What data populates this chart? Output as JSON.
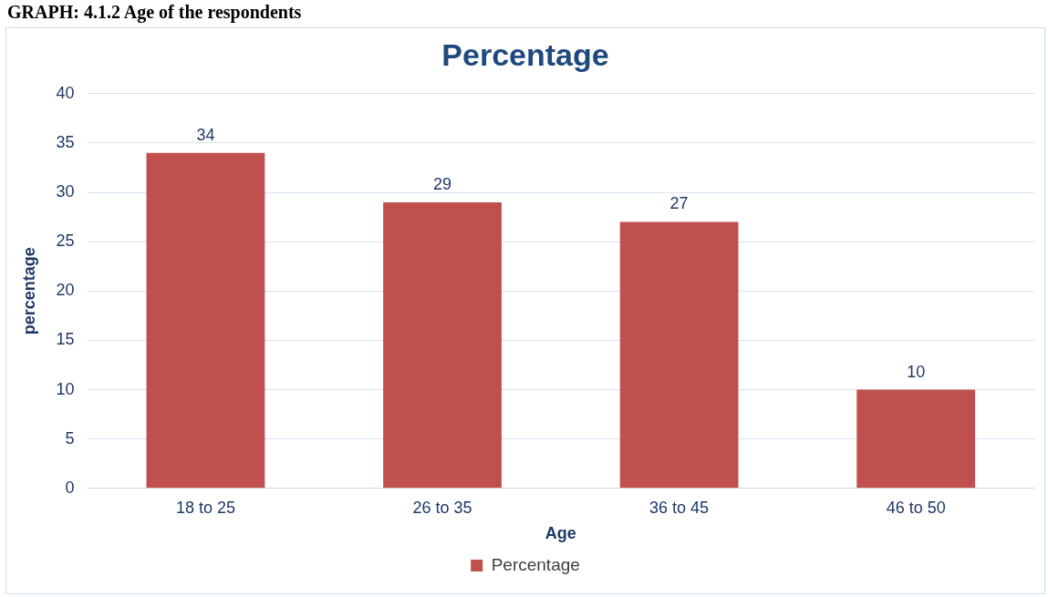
{
  "chart_data": {
    "type": "bar",
    "title": "Percentage",
    "xlabel": "Age",
    "ylabel": "percentage",
    "annotations": [
      "GRAPH: 4.1.2 Age of the respondents"
    ],
    "categories": [
      "18 to 25",
      "26 to 35",
      "36 to 45",
      "46 to 50"
    ],
    "series": [
      {
        "name": "Percentage",
        "color": "#c0504d",
        "values": [
          34,
          29,
          27,
          10
        ]
      }
    ],
    "ylim": [
      0,
      40
    ],
    "yticks": [
      0,
      5,
      10,
      15,
      20,
      25,
      30,
      35,
      40
    ],
    "grid": "y",
    "legend": "bottom",
    "data_labels": true
  }
}
